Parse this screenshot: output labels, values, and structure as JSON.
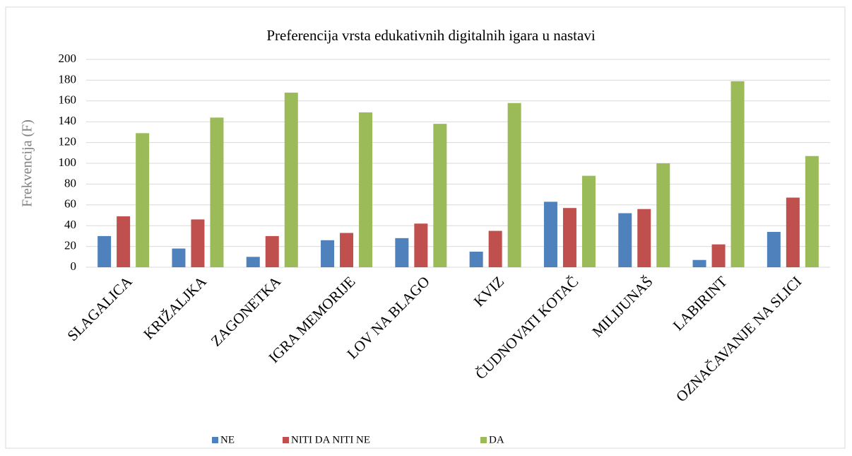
{
  "chart_data": {
    "type": "bar",
    "title": "Preferencija vrsta edukativnih digitalnih igara u nastavi",
    "y_label": "Frekvencija (F)",
    "categories": [
      "SLAGALICA",
      "KRIŽALJKA",
      "ZAGONETKA",
      "IGRA MEMORIJE",
      "LOV NA BLAGO",
      "KVIZ",
      "ČUDNOVATI KOTAČ",
      "MILIJUNAŠ",
      "LABIRINT",
      "OZNAČAVANJE NA SLICI"
    ],
    "series": [
      {
        "name": "NE",
        "color": "#4f81bd",
        "values": [
          30,
          18,
          10,
          26,
          28,
          15,
          63,
          52,
          7,
          34
        ]
      },
      {
        "name": "NITI DA NITI NE",
        "color": "#c0504d",
        "values": [
          49,
          46,
          30,
          33,
          42,
          35,
          57,
          56,
          22,
          67
        ]
      },
      {
        "name": "DA",
        "color": "#9bbb59",
        "values": [
          129,
          144,
          168,
          149,
          138,
          158,
          88,
          100,
          179,
          107
        ]
      }
    ],
    "ylim": [
      0,
      200
    ],
    "yticks": [
      0,
      20,
      40,
      60,
      80,
      100,
      120,
      140,
      160,
      180,
      200
    ],
    "grid": true,
    "legend": "bottom"
  }
}
